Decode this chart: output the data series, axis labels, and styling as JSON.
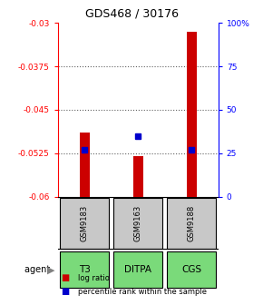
{
  "title": "GDS468 / 30176",
  "samples": [
    "GSM9183",
    "GSM9163",
    "GSM9188"
  ],
  "agents": [
    "T3",
    "DITPA",
    "CGS"
  ],
  "log_ratios": [
    -0.049,
    -0.053,
    -0.0315
  ],
  "percentile_ranks": [
    27,
    35,
    27
  ],
  "ylim": [
    -0.06,
    -0.03
  ],
  "yticks_left": [
    -0.06,
    -0.0525,
    -0.045,
    -0.0375,
    -0.03
  ],
  "yticks_left_labels": [
    "-0.06",
    "-0.0525",
    "-0.045",
    "-0.0375",
    "-0.03"
  ],
  "yticks_right": [
    0,
    25,
    50,
    75,
    100
  ],
  "yticks_right_labels": [
    "0",
    "25",
    "50",
    "75",
    "100%"
  ],
  "bar_color": "#cc0000",
  "percentile_color": "#0000cc",
  "sample_box_color": "#c8c8c8",
  "agent_box_color": "#7ada7a",
  "background_color": "#ffffff",
  "grid_color": "#606060",
  "bar_width": 0.18
}
